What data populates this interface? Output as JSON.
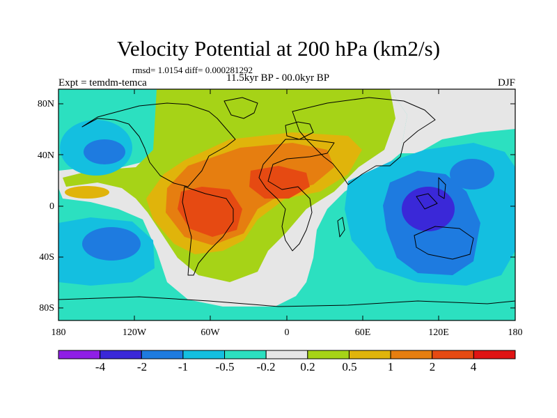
{
  "title": "Velocity Potential at 200 hPa (km2/s)",
  "stats": "rmsd= 1.0154 diff= 0.000281292",
  "experiment": "Expt = temdm-temca",
  "period": "11.5kyr BP - 00.0kyr BP",
  "season": "DJF",
  "lat_ticks": [
    "80N",
    "40N",
    "0",
    "40S",
    "80S"
  ],
  "lon_ticks": [
    "180",
    "120W",
    "60W",
    "0",
    "60E",
    "120E",
    "180"
  ],
  "colorbar": {
    "labels": [
      "-4",
      "-2",
      "-1",
      "-0.5",
      "-0.2",
      "0.2",
      "0.5",
      "1",
      "2",
      "4"
    ],
    "colors": [
      "#8f1fe6",
      "#3a28d8",
      "#1e7be0",
      "#14bfe0",
      "#2ce0c0",
      "#e6e6e6",
      "#a6d317",
      "#e0b40b",
      "#e67e10",
      "#e64a12",
      "#e01414"
    ]
  }
}
